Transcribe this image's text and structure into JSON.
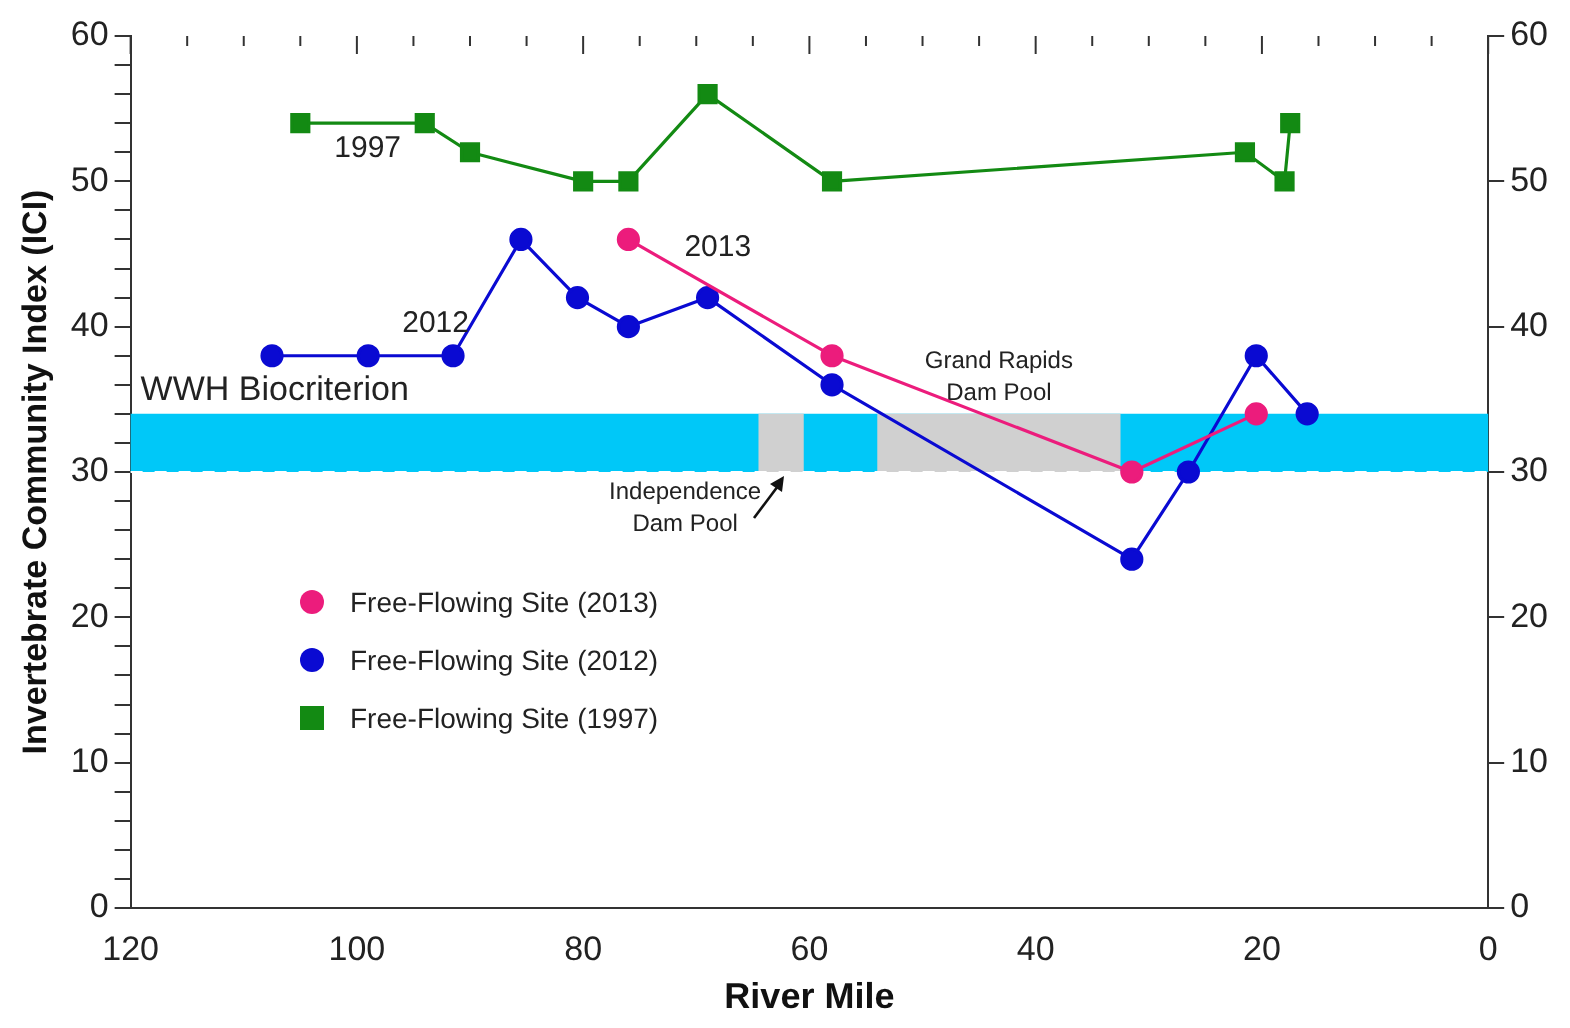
{
  "chart_data": {
    "type": "line",
    "xlabel": "River Mile",
    "ylabel": "Invertebrate Community Index (ICI)",
    "xlim": [
      120,
      0
    ],
    "ylim": [
      0,
      60
    ],
    "y2lim": [
      0,
      60
    ],
    "xticks": [
      120,
      {
        "value": 115,
        "label": null
      },
      100,
      {
        "value": 105,
        "label": null
      },
      {
        "value": 110,
        "label": null
      },
      {
        "value": 95,
        "label": null
      },
      {
        "value": 90,
        "label": null
      },
      {
        "value": 85,
        "label": null
      },
      80,
      {
        "value": 75,
        "label": null
      },
      {
        "value": 70,
        "label": null
      },
      {
        "value": 65,
        "label": null
      },
      60,
      {
        "value": 55,
        "label": null
      },
      {
        "value": 50,
        "label": null
      },
      {
        "value": 45,
        "label": null
      },
      40,
      {
        "value": 35,
        "label": null
      },
      {
        "value": 30,
        "label": null
      },
      {
        "value": 25,
        "label": null
      },
      20,
      {
        "value": 15,
        "label": null
      },
      {
        "value": 10,
        "label": null
      },
      {
        "value": 5,
        "label": null
      },
      0
    ],
    "yticks": [
      0,
      {
        "value": 2,
        "label": null
      },
      {
        "value": 4,
        "label": null
      },
      {
        "value": 6,
        "label": null
      },
      {
        "value": 8,
        "label": null
      },
      10,
      {
        "value": 12,
        "label": null
      },
      {
        "value": 14,
        "label": null
      },
      {
        "value": 16,
        "label": null
      },
      {
        "value": 18,
        "label": null
      },
      20,
      {
        "value": 22,
        "label": null
      },
      {
        "value": 24,
        "label": null
      },
      {
        "value": 26,
        "label": null
      },
      {
        "value": 28,
        "label": null
      },
      30,
      {
        "value": 32,
        "label": null
      },
      {
        "value": 34,
        "label": null
      },
      {
        "value": 36,
        "label": null
      },
      {
        "value": 38,
        "label": null
      },
      40,
      {
        "value": 42,
        "label": null
      },
      {
        "value": 44,
        "label": null
      },
      {
        "value": 46,
        "label": null
      },
      {
        "value": 48,
        "label": null
      },
      50,
      {
        "value": 52,
        "label": null
      },
      {
        "value": 54,
        "label": null
      },
      {
        "value": 56,
        "label": null
      },
      {
        "value": 58,
        "label": null
      },
      60
    ],
    "y2ticks": [
      0,
      10,
      20,
      30,
      40,
      50,
      60
    ],
    "legend": "left",
    "grid": false,
    "series": [
      {
        "name": "Free-Flowing Site (2013)",
        "color": "#ec1c7c",
        "marker": "circle",
        "x": [
          76,
          58,
          31.5,
          20.5
        ],
        "values": [
          46,
          38,
          30,
          34
        ]
      },
      {
        "name": "Free-Flowing Site (2012)",
        "color": "#0a0ad2",
        "marker": "circle",
        "x": [
          107.5,
          99,
          91.5,
          85.5,
          80.5,
          76,
          69,
          58,
          31.5,
          26.5,
          20.5,
          16
        ],
        "values": [
          38,
          38,
          38,
          46,
          42,
          40,
          42,
          36,
          24,
          30,
          38,
          34
        ]
      },
      {
        "name": "Free-Flowing Site (1997)",
        "color": "#138a13",
        "marker": "square",
        "x": [
          105,
          94,
          90,
          80,
          76,
          69,
          58,
          21.5,
          18,
          17.5
        ],
        "values": [
          54,
          54,
          52,
          50,
          50,
          56,
          50,
          52,
          50,
          54
        ]
      }
    ],
    "bands": [
      {
        "axis": "y",
        "from": 30,
        "to": 34,
        "label": "WWH Biocriterion",
        "color": "#00c8f8"
      },
      {
        "axis": "x",
        "from": 64.5,
        "to": 60.5,
        "label": "Independence Dam Pool",
        "color": "#d0d0d0"
      },
      {
        "axis": "x",
        "from": 54,
        "to": 32.5,
        "label": "Grand Rapids Dam Pool",
        "color": "#d0d0d0"
      }
    ],
    "ref_lines": [
      {
        "axis": "y",
        "value": 30,
        "color": "#ffffff",
        "line_style": "dashed"
      }
    ],
    "annotations": [
      {
        "text": "1997",
        "x": 105,
        "y": 54
      },
      {
        "text": "2012",
        "x": 99,
        "y": 38
      },
      {
        "text": "2013",
        "x": 76,
        "y": 46
      }
    ]
  }
}
